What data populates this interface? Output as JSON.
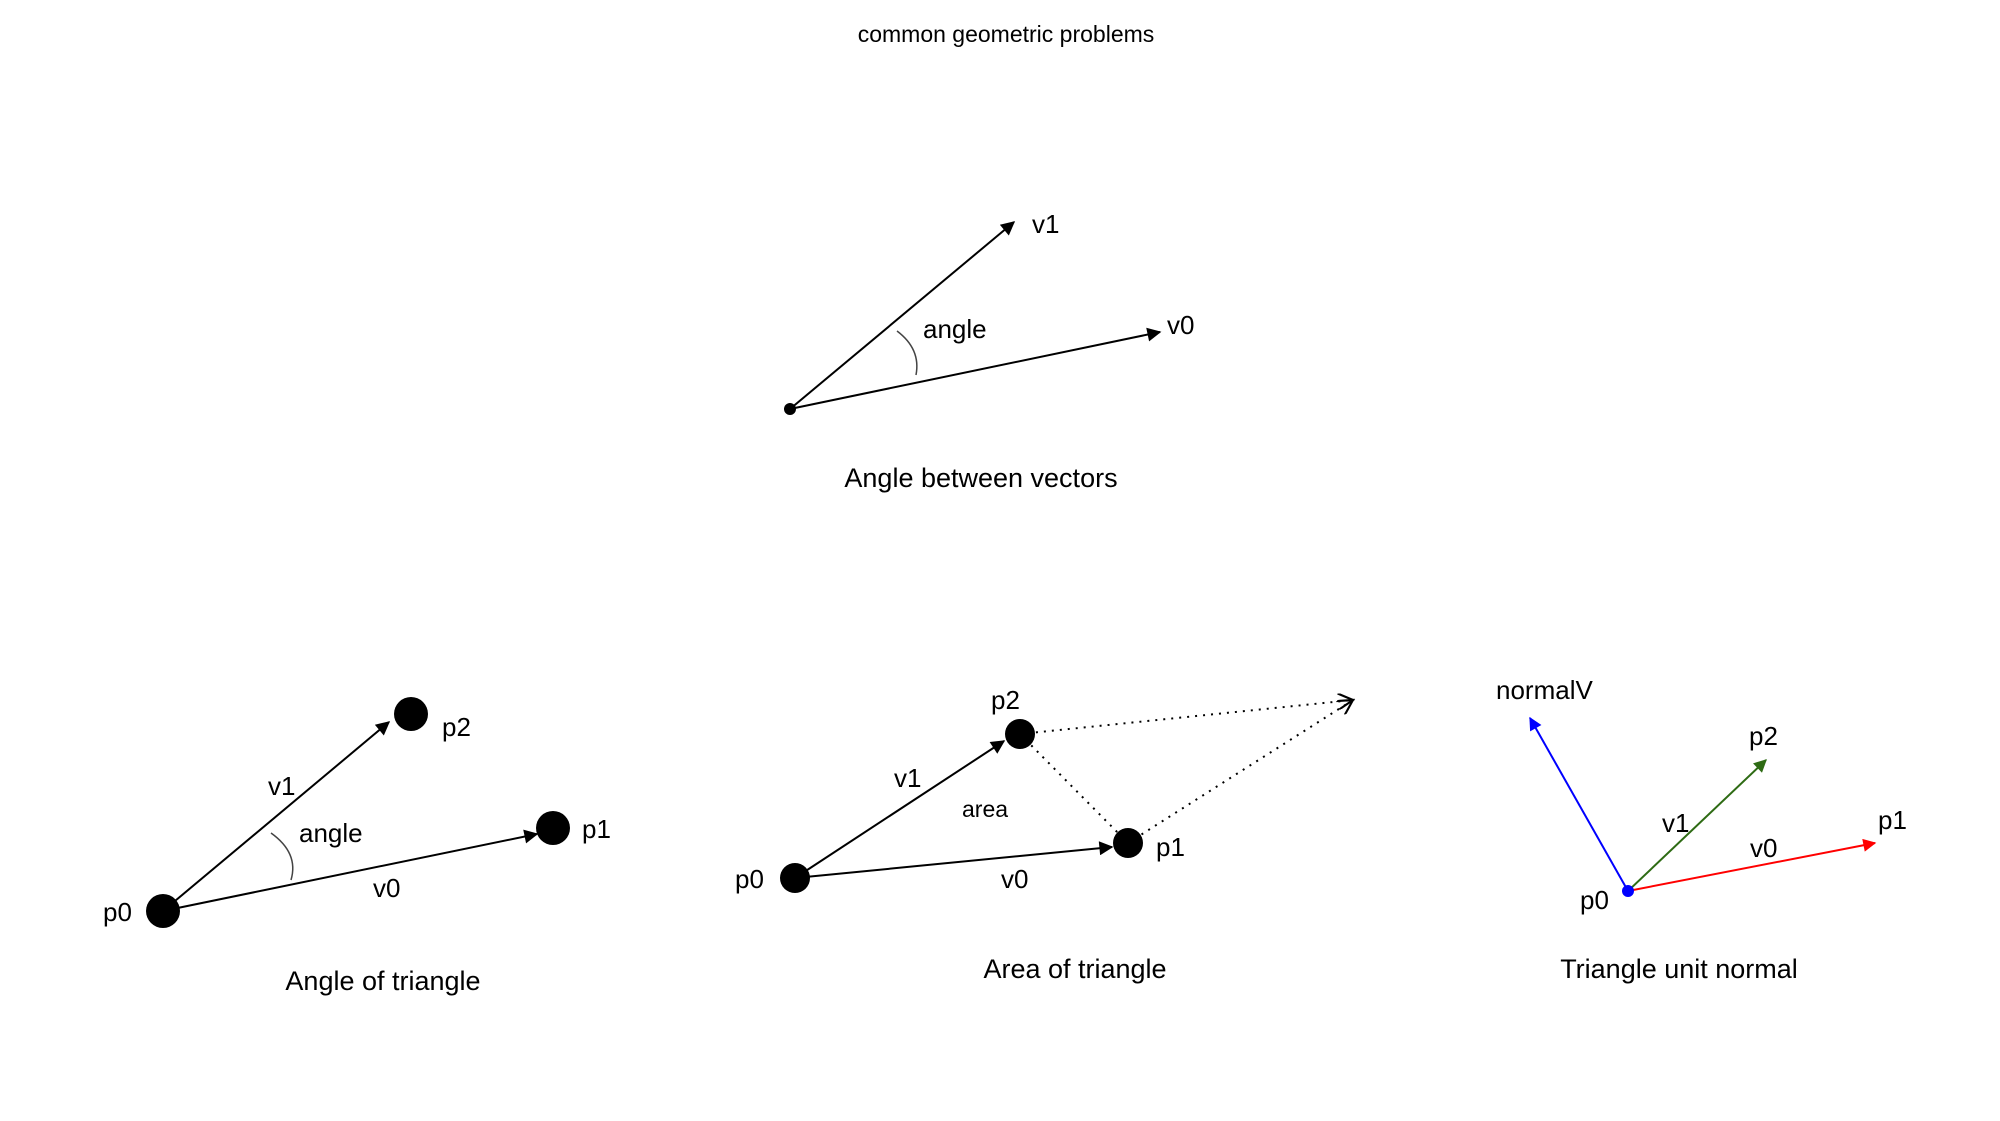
{
  "title": "common geometric problems",
  "colors": {
    "ink": "#000000",
    "arc": "#444444",
    "red": "#ff0000",
    "green": "#2e6b14",
    "blue": "#0000ff"
  },
  "panels": {
    "angle_between_vectors": {
      "caption": "Angle between vectors",
      "v0_label": "v0",
      "v1_label": "v1",
      "angle_label": "angle"
    },
    "angle_of_triangle": {
      "caption": "Angle of triangle",
      "p0_label": "p0",
      "p1_label": "p1",
      "p2_label": "p2",
      "v0_label": "v0",
      "v1_label": "v1",
      "angle_label": "angle"
    },
    "area_of_triangle": {
      "caption": "Area of triangle",
      "p0_label": "p0",
      "p1_label": "p1",
      "p2_label": "p2",
      "v0_label": "v0",
      "v1_label": "v1",
      "area_label": "area"
    },
    "triangle_unit_normal": {
      "caption": "Triangle unit normal",
      "p0_label": "p0",
      "p1_label": "p1",
      "p2_label": "p2",
      "v0_label": "v0",
      "v1_label": "v1",
      "normal_label": "normalV"
    }
  }
}
